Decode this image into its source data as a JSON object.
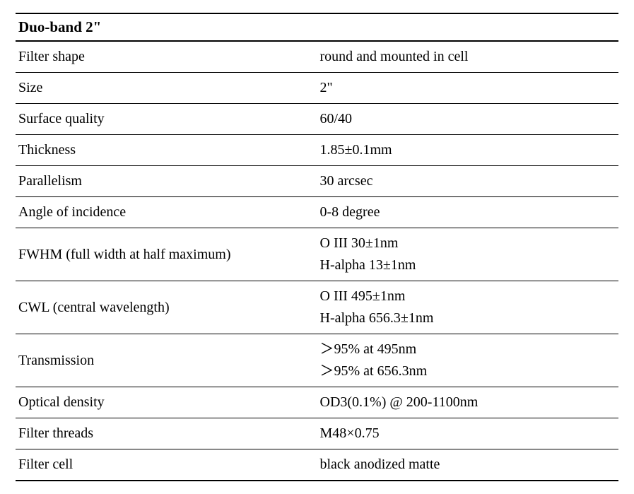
{
  "table": {
    "title": "Duo-band 2\"",
    "rows": [
      {
        "label": "Filter shape",
        "value": "round and mounted in cell"
      },
      {
        "label": "Size",
        "value": "2\""
      },
      {
        "label": "Surface quality",
        "value": "60/40"
      },
      {
        "label": "Thickness",
        "value": "1.85±0.1mm"
      },
      {
        "label": "Parallelism",
        "value": "30 arcsec"
      },
      {
        "label": "Angle of incidence",
        "value": "0-8 degree"
      },
      {
        "label": "FWHM (full width at half maximum)",
        "value": "O III 30±1nm\nH-alpha 13±1nm"
      },
      {
        "label": "CWL (central wavelength)",
        "value": "O III 495±1nm\nH-alpha 656.3±1nm"
      },
      {
        "label": "Transmission",
        "value": "＞95% at 495nm\n＞95% at 656.3nm"
      },
      {
        "label": "Optical density",
        "value": "OD3(0.1%) @ 200-1100nm"
      },
      {
        "label": "Filter threads",
        "value": "M48×0.75"
      },
      {
        "label": "Filter cell",
        "value": "black anodized matte"
      }
    ]
  }
}
